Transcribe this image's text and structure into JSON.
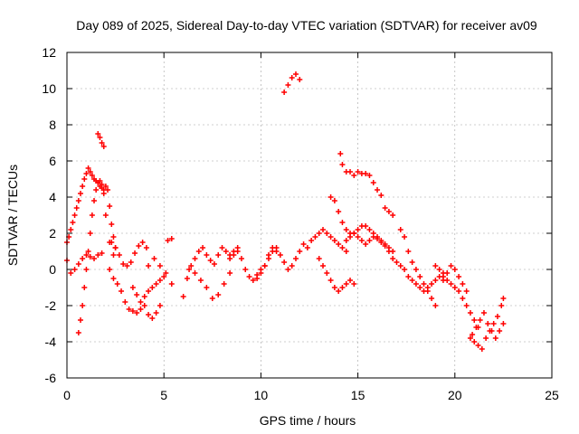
{
  "chart_data": {
    "type": "scatter",
    "title": "Day 089 of 2025, Sidereal Day-to-day VTEC variation (SDTVAR) for receiver av09",
    "xlabel": "GPS time / hours",
    "ylabel": "SDTVAR / TECUs",
    "xlim": [
      0,
      25
    ],
    "ylim": [
      -6,
      12
    ],
    "xticks": [
      0,
      5,
      10,
      15,
      20,
      25
    ],
    "yticks": [
      -6,
      -4,
      -2,
      0,
      2,
      4,
      6,
      8,
      10,
      12
    ],
    "grid": true,
    "marker": "+",
    "series_color": "#ff0000",
    "series": [
      {
        "name": "SDTVAR",
        "x": [
          0.0,
          0.1,
          0.2,
          0.3,
          0.4,
          0.5,
          0.6,
          0.7,
          0.8,
          0.9,
          1.0,
          1.1,
          1.2,
          1.3,
          1.4,
          1.5,
          1.6,
          1.7,
          1.8,
          1.9,
          2.0,
          2.1,
          2.2,
          2.3,
          2.4,
          2.5,
          0.6,
          0.7,
          0.8,
          0.9,
          1.0,
          1.1,
          1.2,
          1.3,
          1.4,
          1.5,
          1.6,
          1.7,
          1.8,
          1.9,
          2.0,
          2.2,
          2.4,
          0.0,
          0.2,
          0.4,
          0.6,
          0.8,
          1.0,
          1.2,
          1.4,
          1.6,
          1.8,
          1.6,
          1.7,
          1.8,
          1.9,
          2.3,
          2.5,
          2.7,
          2.9,
          3.1,
          3.3,
          3.5,
          3.7,
          3.9,
          4.1,
          2.2,
          2.4,
          2.6,
          2.8,
          3.0,
          3.2,
          3.4,
          3.6,
          3.8,
          4.0,
          4.2,
          4.4,
          4.6,
          4.8,
          3.4,
          3.6,
          3.8,
          4.0,
          4.2,
          4.4,
          4.6,
          4.8,
          5.0,
          5.2,
          5.4,
          4.2,
          4.5,
          4.8,
          5.1,
          5.4,
          6.0,
          6.2,
          6.4,
          6.6,
          6.8,
          7.0,
          7.2,
          7.4,
          7.6,
          7.8,
          8.0,
          8.2,
          8.4,
          8.6,
          8.8,
          6.3,
          6.6,
          6.9,
          7.2,
          7.5,
          7.8,
          8.1,
          8.4,
          8.4,
          8.6,
          8.8,
          9.0,
          9.2,
          9.4,
          9.6,
          9.8,
          10.0,
          10.2,
          10.4,
          10.6,
          10.8,
          9.8,
          10.0,
          10.2,
          10.4,
          10.6,
          10.8,
          11.0,
          11.2,
          11.4,
          11.6,
          11.8,
          12.0,
          12.2,
          11.2,
          11.4,
          11.6,
          11.8,
          12.0,
          12.4,
          12.6,
          12.8,
          13.0,
          13.2,
          13.4,
          13.6,
          13.8,
          14.0,
          14.2,
          14.4,
          13.0,
          13.2,
          13.4,
          13.6,
          13.8,
          14.0,
          14.2,
          14.4,
          14.6,
          14.8,
          13.6,
          13.8,
          14.0,
          14.2,
          14.4,
          14.6,
          14.8,
          15.0,
          15.2,
          15.4,
          15.6,
          15.8,
          16.0,
          16.2,
          16.4,
          16.6,
          16.8,
          14.1,
          14.2,
          14.4,
          14.6,
          14.8,
          15.0,
          15.2,
          15.4,
          15.6,
          15.8,
          16.0,
          16.2,
          14.4,
          14.6,
          14.8,
          15.0,
          15.2,
          15.4,
          15.6,
          15.8,
          16.0,
          16.2,
          16.4,
          16.6,
          16.4,
          16.6,
          16.8,
          16.8,
          17.0,
          17.2,
          17.4,
          17.6,
          17.8,
          18.0,
          18.2,
          18.4,
          18.6,
          18.8,
          19.0,
          19.2,
          19.4,
          17.2,
          17.4,
          17.6,
          17.8,
          18.0,
          18.2,
          18.4,
          18.6,
          18.8,
          19.0,
          19.0,
          19.2,
          19.4,
          19.6,
          19.8,
          20.0,
          20.2,
          20.4,
          20.6,
          20.8,
          21.0,
          21.2,
          19.4,
          19.6,
          19.8,
          20.0,
          20.2,
          20.4,
          20.6,
          20.8,
          21.0,
          21.2,
          21.4,
          21.6,
          21.8,
          22.0,
          22.2,
          22.4,
          22.5,
          20.9,
          21.1,
          21.3,
          21.5,
          21.7,
          21.9,
          22.1,
          22.3,
          22.5
        ],
        "y": [
          1.5,
          1.8,
          2.2,
          2.6,
          3.0,
          3.4,
          3.8,
          4.2,
          4.6,
          5.0,
          5.3,
          5.6,
          5.4,
          5.2,
          5.0,
          4.9,
          4.8,
          4.6,
          4.5,
          4.4,
          4.6,
          4.4,
          3.5,
          2.5,
          1.8,
          1.2,
          -3.5,
          -2.8,
          -2.0,
          -1.0,
          0.0,
          1.0,
          2.0,
          3.0,
          3.8,
          4.4,
          4.8,
          4.9,
          4.7,
          4.2,
          3.0,
          1.5,
          0.8,
          0.5,
          -0.2,
          0.0,
          0.3,
          0.6,
          0.8,
          0.7,
          0.6,
          0.8,
          0.9,
          7.5,
          7.3,
          7.0,
          6.8,
          1.5,
          1.2,
          0.8,
          0.3,
          0.2,
          0.4,
          0.9,
          1.3,
          1.5,
          1.2,
          0.0,
          -0.5,
          -0.8,
          -1.2,
          -1.8,
          -2.2,
          -2.3,
          -2.4,
          -2.2,
          -2.0,
          -2.5,
          -2.7,
          -2.4,
          -2.0,
          -1.0,
          -1.4,
          -1.8,
          -1.5,
          -1.2,
          -1.0,
          -0.8,
          -0.6,
          -0.4,
          1.6,
          1.7,
          0.2,
          0.6,
          0.2,
          -0.2,
          -0.8,
          -1.5,
          -0.5,
          0.2,
          0.6,
          1.0,
          1.2,
          0.8,
          0.5,
          0.3,
          0.8,
          1.2,
          1.0,
          0.8,
          1.0,
          1.2,
          0.0,
          -0.2,
          -0.6,
          -1.0,
          -1.6,
          -1.4,
          -0.8,
          -0.2,
          0.6,
          0.8,
          1.0,
          0.6,
          0.0,
          -0.4,
          -0.6,
          -0.3,
          0.0,
          0.2,
          0.8,
          1.2,
          1.0,
          -0.5,
          -0.2,
          0.2,
          0.6,
          1.0,
          1.2,
          0.8,
          0.4,
          0.0,
          0.2,
          0.6,
          1.0,
          1.4,
          9.8,
          10.2,
          10.6,
          10.8,
          10.5,
          1.2,
          1.6,
          1.8,
          2.0,
          2.2,
          2.0,
          1.8,
          1.6,
          1.4,
          1.2,
          1.0,
          0.6,
          0.2,
          -0.2,
          -0.6,
          -1.0,
          -1.2,
          -1.0,
          -0.8,
          -0.6,
          -0.8,
          4.0,
          3.8,
          3.2,
          2.6,
          2.2,
          2.0,
          2.0,
          2.2,
          2.4,
          2.4,
          2.2,
          2.0,
          1.8,
          1.6,
          1.4,
          1.2,
          1.0,
          6.4,
          5.8,
          5.4,
          5.4,
          5.2,
          5.4,
          5.3,
          5.3,
          5.2,
          4.8,
          4.4,
          4.1,
          1.6,
          1.8,
          2.0,
          1.8,
          1.6,
          1.4,
          1.6,
          1.8,
          1.7,
          1.5,
          1.3,
          1.0,
          3.4,
          3.2,
          3.0,
          0.6,
          0.4,
          0.2,
          0.0,
          -0.4,
          -0.6,
          -0.8,
          -1.0,
          -1.2,
          -1.0,
          -0.8,
          -0.6,
          -0.4,
          -0.2,
          2.2,
          1.8,
          1.0,
          0.4,
          0.0,
          -0.4,
          -0.8,
          -1.2,
          -1.6,
          -2.0,
          0.2,
          0.0,
          -0.4,
          -0.6,
          -0.8,
          -1.0,
          -1.2,
          -1.6,
          -2.0,
          -2.4,
          -2.8,
          -3.2,
          -0.6,
          -0.2,
          0.2,
          0.0,
          -0.4,
          -0.8,
          -1.2,
          -3.8,
          -4.0,
          -4.2,
          -4.4,
          -3.8,
          -3.4,
          -3.0,
          -2.6,
          -2.0,
          -1.6,
          -3.6,
          -3.2,
          -2.8,
          -2.4,
          -3.0,
          -3.4,
          -3.8,
          -3.4,
          -3.0
        ]
      }
    ]
  }
}
